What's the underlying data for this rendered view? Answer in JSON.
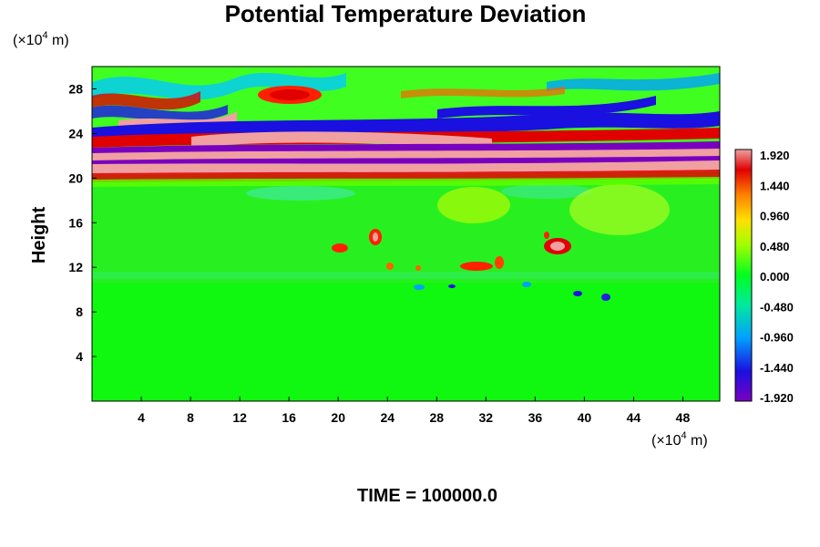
{
  "chart_data": {
    "type": "heatmap",
    "title": "Potential Temperature Deviation",
    "ylabel": "Height",
    "x_unit_prefix": "(×10",
    "x_unit_exp": "4",
    "x_unit_suffix": " m)",
    "y_unit_prefix": "(×10",
    "y_unit_exp": "4",
    "y_unit_suffix": " m)",
    "xlim": [
      0,
      51
    ],
    "ylim": [
      0,
      30
    ],
    "x_ticks": [
      4,
      8,
      12,
      16,
      20,
      24,
      28,
      32,
      36,
      40,
      44,
      48
    ],
    "y_ticks": [
      4,
      8,
      12,
      16,
      20,
      24,
      28
    ],
    "colorbar": {
      "min": -1.92,
      "max": 1.92,
      "tick_labels": [
        "1.920",
        "1.440",
        "0.960",
        "0.480",
        "0.000",
        "-0.480",
        "-0.960",
        "-1.440",
        "-1.920"
      ],
      "colors": [
        "#7a00c0",
        "#3000d8",
        "#0040ff",
        "#00a0ff",
        "#00e0e0",
        "#00e890",
        "#00ff20",
        "#40ff00",
        "#a0ff00",
        "#e0ff00",
        "#ffe000",
        "#ffa000",
        "#ff6000",
        "#ff2000",
        "#e00000",
        "#f0a0a0"
      ]
    },
    "footer": "TIME = 100000.0"
  }
}
